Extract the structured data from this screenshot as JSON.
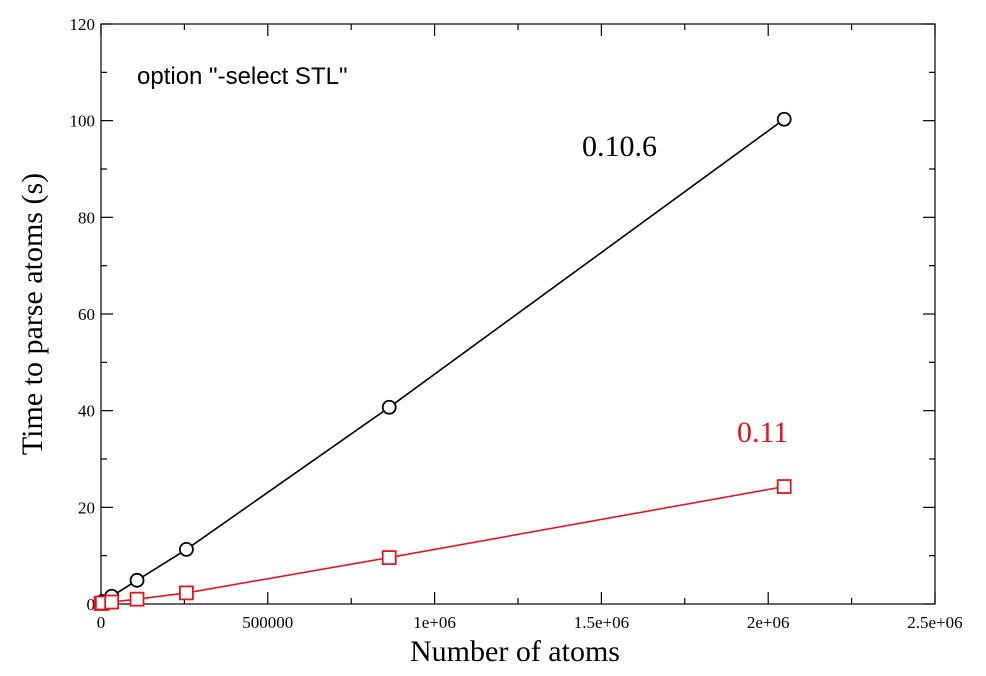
{
  "chart_data": {
    "type": "line",
    "xlabel": "Number of atoms",
    "ylabel": "Time to parse atoms (s)",
    "annotation": "option \"-select STL\"",
    "xlim": [
      0,
      2500000
    ],
    "ylim": [
      0,
      120
    ],
    "x_ticks": [
      0,
      500000,
      1000000,
      1500000,
      2000000,
      2500000
    ],
    "x_tick_labels": [
      "0",
      "500000",
      "1e+06",
      "1.5e+06",
      "2e+06",
      "2.5e+06"
    ],
    "y_ticks": [
      0,
      20,
      40,
      60,
      80,
      100,
      120
    ],
    "y_tick_labels": [
      "0",
      "20",
      "40",
      "60",
      "80",
      "100",
      "120"
    ],
    "grid": false,
    "series": [
      {
        "name": "0.10.6",
        "color": "#000000",
        "marker": "circle",
        "x": [
          0,
          4000,
          32000,
          108000,
          256000,
          864000,
          2048000
        ],
        "y": [
          0.2,
          0.5,
          1.6,
          4.9,
          11.3,
          40.7,
          100.3
        ]
      },
      {
        "name": "0.11",
        "color": "#e8141c",
        "marker": "square",
        "x": [
          0,
          4000,
          32000,
          108000,
          256000,
          864000,
          2048000
        ],
        "y": [
          0.1,
          0.2,
          0.4,
          1.0,
          2.3,
          9.6,
          24.3
        ]
      }
    ]
  }
}
